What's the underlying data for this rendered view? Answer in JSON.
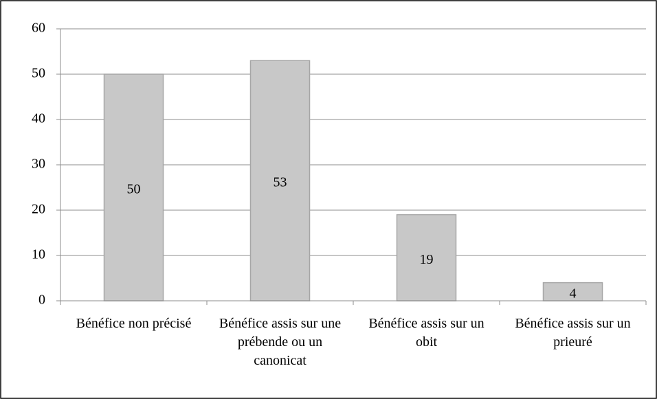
{
  "chart_data": {
    "type": "bar",
    "categories": [
      "Bénéfice non précisé",
      "Bénéfice assis sur une prébende ou un canonicat",
      "Bénéfice assis sur un obit",
      "Bénéfice assis sur un prieuré"
    ],
    "values": [
      50,
      53,
      19,
      4
    ],
    "color": "#c8c8c8",
    "ylim": [
      0,
      60
    ],
    "yticks": [
      0,
      10,
      20,
      30,
      40,
      50,
      60
    ],
    "grid": true
  }
}
